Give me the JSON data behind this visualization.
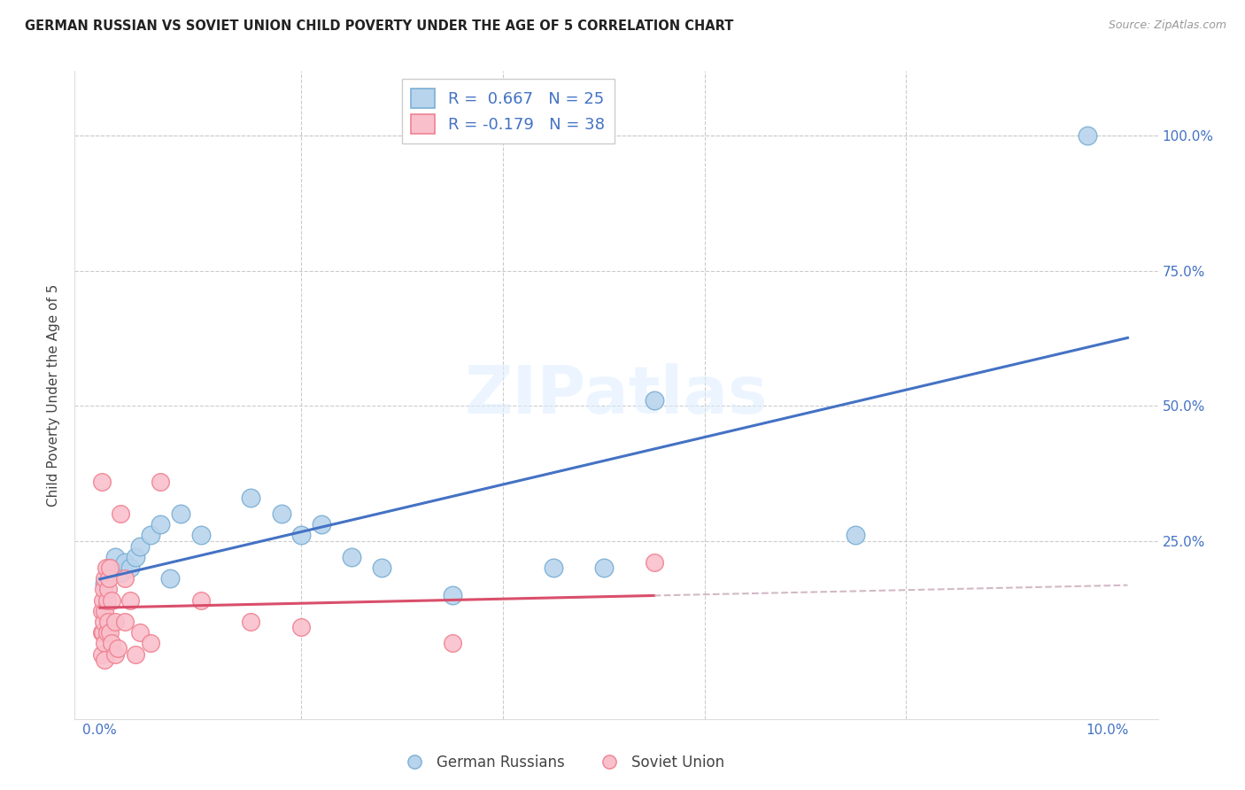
{
  "title": "GERMAN RUSSIAN VS SOVIET UNION CHILD POVERTY UNDER THE AGE OF 5 CORRELATION CHART",
  "source": "Source: ZipAtlas.com",
  "ylabel": "Child Poverty Under the Age of 5",
  "xlim": [
    -0.25,
    10.5
  ],
  "ylim": [
    -8,
    112
  ],
  "german_russian_color": "#b8d4ed",
  "soviet_union_color": "#f9c0cc",
  "german_russian_edge": "#7bafd4",
  "soviet_union_edge": "#f08090",
  "trend_blue": "#4472c4",
  "trend_pink": "#d94f6b",
  "trend_pink_dashed": "#c8a8b8",
  "R_german": 0.667,
  "N_german": 25,
  "R_soviet": -0.179,
  "N_soviet": 38,
  "legend_label_german": "German Russians",
  "legend_label_soviet": "Soviet Union",
  "watermark": "ZIPatlas",
  "german_russian_x": [
    0.05,
    0.1,
    0.15,
    0.2,
    0.25,
    0.3,
    0.35,
    0.4,
    0.5,
    0.6,
    0.7,
    0.8,
    1.0,
    1.5,
    1.8,
    2.0,
    2.2,
    2.5,
    2.8,
    3.5,
    4.5,
    5.0,
    5.5,
    7.5,
    9.8
  ],
  "german_russian_y": [
    17,
    20,
    22,
    19,
    21,
    20,
    22,
    24,
    26,
    28,
    18,
    30,
    26,
    33,
    30,
    26,
    28,
    22,
    20,
    15,
    20,
    20,
    51,
    26,
    100
  ],
  "soviet_union_x": [
    0.02,
    0.02,
    0.02,
    0.02,
    0.03,
    0.03,
    0.04,
    0.04,
    0.05,
    0.05,
    0.05,
    0.05,
    0.06,
    0.07,
    0.07,
    0.08,
    0.08,
    0.09,
    0.1,
    0.1,
    0.12,
    0.12,
    0.15,
    0.15,
    0.18,
    0.2,
    0.25,
    0.25,
    0.3,
    0.35,
    0.4,
    0.5,
    0.6,
    1.0,
    1.5,
    2.0,
    3.5,
    5.5
  ],
  "soviet_union_y": [
    36,
    12,
    8,
    4,
    14,
    8,
    16,
    10,
    18,
    12,
    6,
    3,
    20,
    14,
    8,
    16,
    10,
    18,
    20,
    8,
    14,
    6,
    10,
    4,
    5,
    30,
    18,
    10,
    14,
    4,
    8,
    6,
    36,
    14,
    10,
    9,
    6,
    21
  ]
}
